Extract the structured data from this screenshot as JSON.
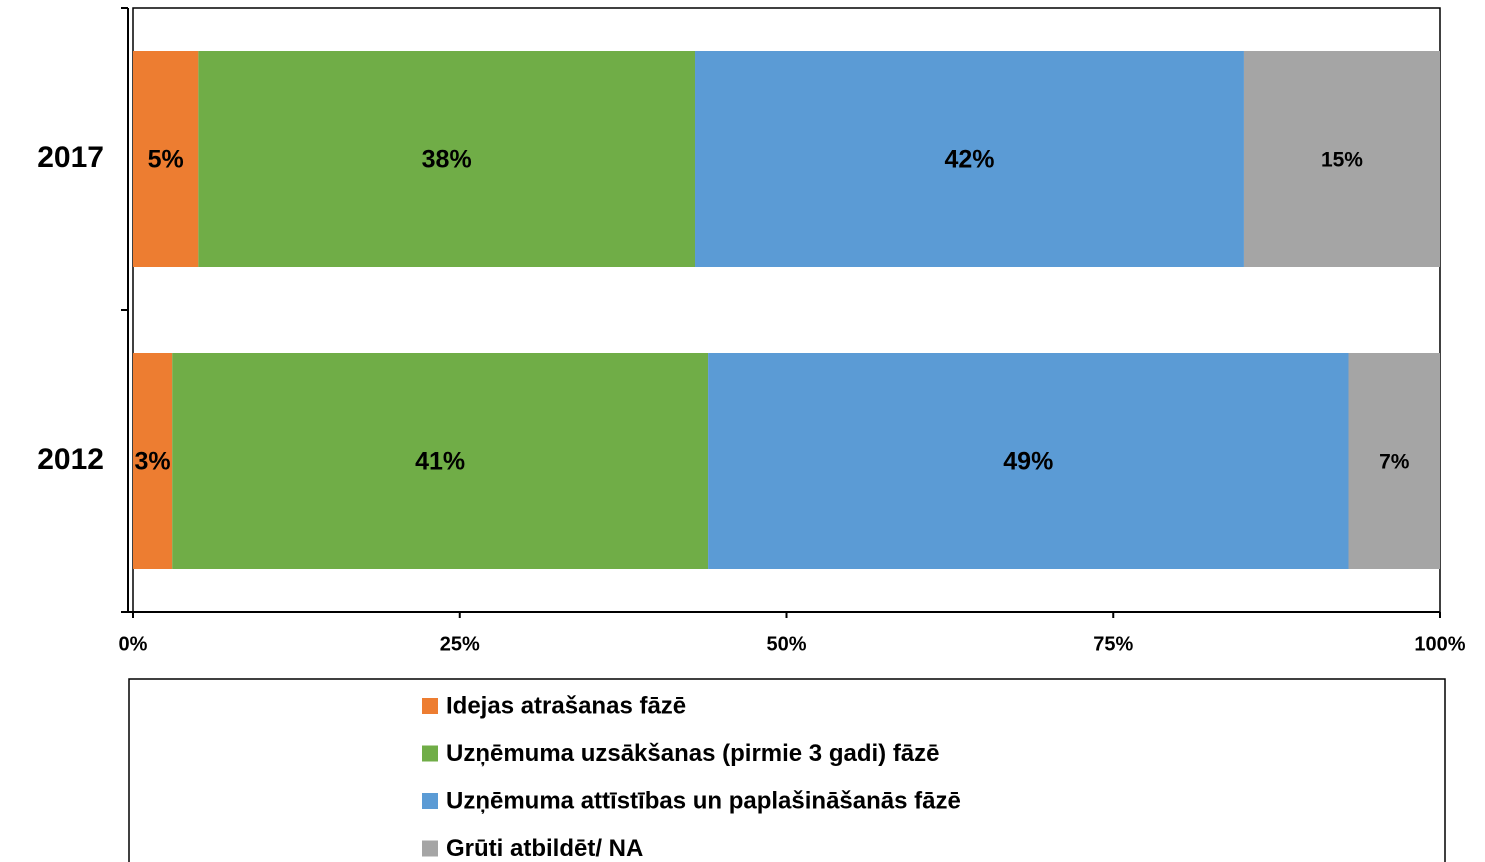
{
  "chart_data": {
    "type": "stacked-bar-horizontal",
    "categories": [
      "2017",
      "2012"
    ],
    "series": [
      {
        "name": "Idejas atrašanas fāzē",
        "color": "#ED7D31",
        "values": [
          5,
          3
        ],
        "value_labels": [
          "5%",
          "3%"
        ]
      },
      {
        "name": "Uzņēmuma uzsākšanas (pirmie 3 gadi) fāzē",
        "color": "#70AD47",
        "values": [
          38,
          41
        ],
        "value_labels": [
          "38%",
          "41%"
        ]
      },
      {
        "name": "Uzņēmuma attīstības un paplašināšanās fāzē",
        "color": "#5B9BD5",
        "values": [
          42,
          49
        ],
        "value_labels": [
          "42%",
          "49%"
        ]
      },
      {
        "name": "Grūti atbildēt/ NA",
        "color": "#A5A5A5",
        "values": [
          15,
          7
        ],
        "value_labels": [
          "15%",
          "7%"
        ]
      }
    ],
    "xlim": [
      0,
      100
    ],
    "xticks": [
      {
        "value": 0,
        "label": "0%"
      },
      {
        "value": 25,
        "label": "25%"
      },
      {
        "value": 50,
        "label": "50%"
      },
      {
        "value": 75,
        "label": "75%"
      },
      {
        "value": 100,
        "label": "100%"
      }
    ],
    "legend": "bottom"
  }
}
